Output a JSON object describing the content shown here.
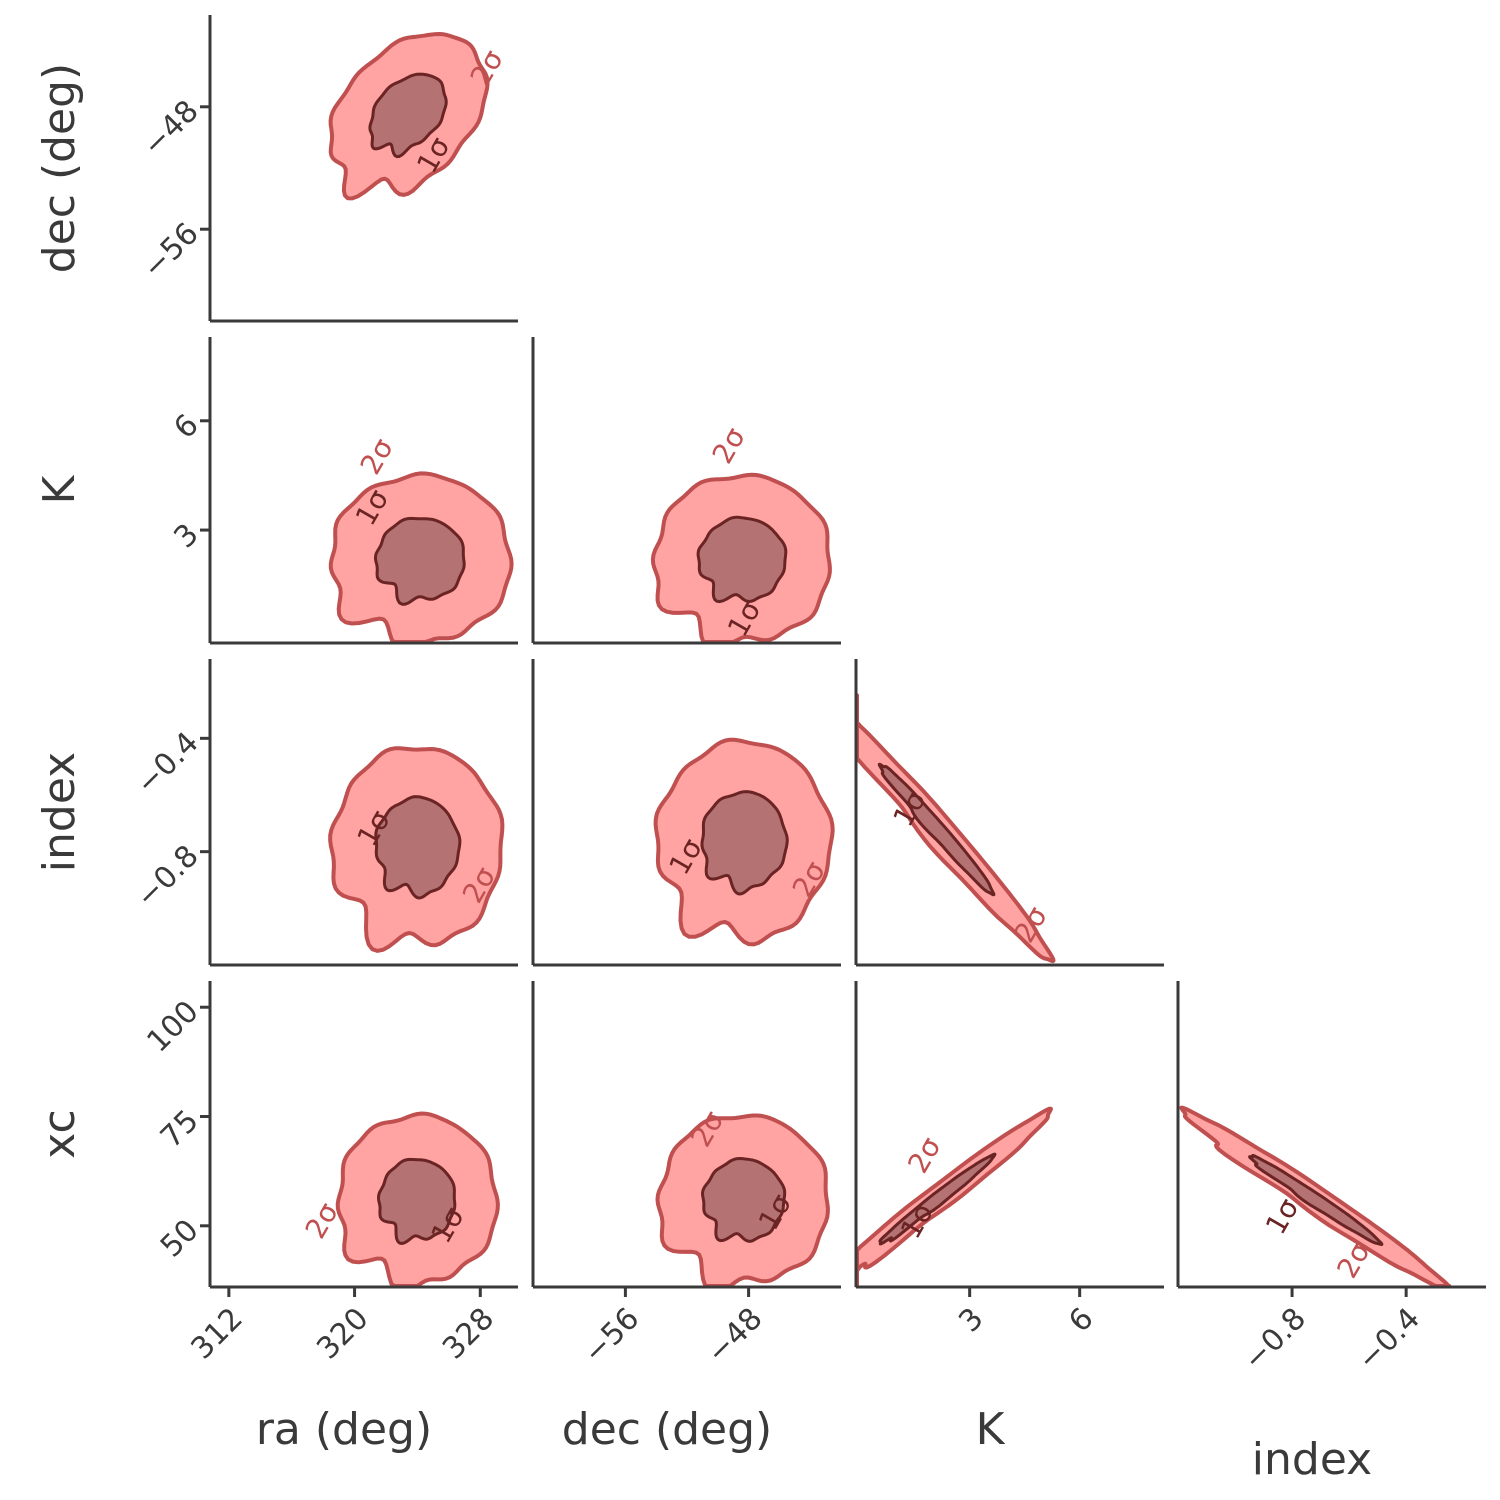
{
  "chart_data": {
    "type": "corner",
    "parameters": [
      {
        "key": "ra",
        "label": "ra (deg)",
        "range": [
          310.8,
          330.4
        ],
        "ticks": [
          312,
          320,
          328
        ],
        "tick_labels": [
          "312",
          "320",
          "328"
        ]
      },
      {
        "key": "dec",
        "label": "dec (deg)",
        "range": [
          -62.0,
          -42.0
        ],
        "ticks": [
          -56,
          -48
        ],
        "tick_labels": [
          "−56",
          "−48"
        ]
      },
      {
        "key": "K",
        "label": "K",
        "range": [
          -0.1,
          8.3
        ],
        "ticks": [
          3,
          6
        ],
        "tick_labels": [
          "3",
          "6"
        ]
      },
      {
        "key": "index",
        "label": "index",
        "range": [
          -1.2,
          -0.12
        ],
        "ticks": [
          -0.8,
          -0.4
        ],
        "tick_labels": [
          "−0.8",
          "−0.4"
        ]
      },
      {
        "key": "xc",
        "label": "xc",
        "range": [
          36,
          106
        ],
        "ticks": [
          50,
          75,
          100
        ],
        "tick_labels": [
          "50",
          "75",
          "100"
        ]
      }
    ],
    "contour_levels": [
      "1σ",
      "2σ"
    ],
    "colors": {
      "sigma1_fill": "#b07070",
      "sigma2_fill": "#ff9999",
      "sigma1_line": "#6b2424",
      "sigma2_line": "#c05050",
      "axis": "#3a3a3a"
    },
    "panels": [
      {
        "x": "ra",
        "y": "dec",
        "center": [
          323.4,
          -48.4
        ],
        "sigma": [
          2.3,
          2.4
        ],
        "rho": 0.35,
        "sigma1_scale": 1.05,
        "sigma2_scale": 2.15,
        "label_1sigma_at": [
          325.1,
          -51.2
        ],
        "label_2sigma_at": [
          328.5,
          -45.5
        ]
      },
      {
        "x": "ra",
        "y": "K",
        "center": [
          324.2,
          2.2
        ],
        "sigma": [
          2.6,
          1.05
        ],
        "rho": 0.0,
        "sigma1_scale": 1.08,
        "sigma2_scale": 2.2,
        "label_1sigma_at": [
          321.2,
          3.6
        ],
        "label_2sigma_at": [
          321.5,
          5.0
        ]
      },
      {
        "x": "dec",
        "y": "K",
        "center": [
          -48.4,
          2.2
        ],
        "sigma": [
          2.6,
          1.05
        ],
        "rho": 0.0,
        "sigma1_scale": 1.08,
        "sigma2_scale": 2.2,
        "label_1sigma_at": [
          -48.2,
          0.55
        ],
        "label_2sigma_at": [
          -49.2,
          5.3
        ]
      },
      {
        "x": "ra",
        "y": "index",
        "center": [
          324.0,
          -0.78
        ],
        "sigma": [
          2.4,
          0.155
        ],
        "rho": 0.0,
        "sigma1_scale": 1.1,
        "sigma2_scale": 2.25,
        "label_1sigma_at": [
          321.3,
          -0.72
        ],
        "label_2sigma_at": [
          328.0,
          -0.92
        ]
      },
      {
        "x": "dec",
        "y": "index",
        "center": [
          -48.3,
          -0.76
        ],
        "sigma": [
          2.5,
          0.155
        ],
        "rho": 0.0,
        "sigma1_scale": 1.1,
        "sigma2_scale": 2.25,
        "label_1sigma_at": [
          -52.0,
          -0.82
        ],
        "label_2sigma_at": [
          -44.0,
          -0.9
        ]
      },
      {
        "x": "K",
        "y": "index",
        "center": [
          2.1,
          -0.72
        ],
        "sigma": [
          1.35,
          0.2
        ],
        "rho": -0.985,
        "sigma1_scale": 1.15,
        "sigma2_scale": 2.3,
        "label_1sigma_at": [
          1.4,
          -0.65
        ],
        "label_2sigma_at": [
          4.7,
          -1.06
        ]
      },
      {
        "x": "ra",
        "y": "xc",
        "center": [
          324.0,
          56.0
        ],
        "sigma": [
          2.3,
          8.8
        ],
        "rho": 0.0,
        "sigma1_scale": 1.05,
        "sigma2_scale": 2.2,
        "label_1sigma_at": [
          326.0,
          50.0
        ],
        "label_2sigma_at": [
          318.0,
          51.0
        ]
      },
      {
        "x": "dec",
        "y": "xc",
        "center": [
          -48.3,
          56.0
        ],
        "sigma": [
          2.5,
          8.8
        ],
        "rho": 0.0,
        "sigma1_scale": 1.05,
        "sigma2_scale": 2.2,
        "label_1sigma_at": [
          -46.2,
          53.0
        ],
        "label_2sigma_at": [
          -50.6,
          72.0
        ]
      },
      {
        "x": "K",
        "y": "xc",
        "center": [
          2.1,
          56.0
        ],
        "sigma": [
          1.35,
          8.8
        ],
        "rho": 0.985,
        "sigma1_scale": 1.15,
        "sigma2_scale": 2.3,
        "label_1sigma_at": [
          1.6,
          51.0
        ],
        "label_2sigma_at": [
          1.8,
          66.0
        ]
      },
      {
        "x": "index",
        "y": "xc",
        "center": [
          -0.72,
          56.0
        ],
        "sigma": [
          0.2,
          8.8
        ],
        "rho": -0.985,
        "sigma1_scale": 1.15,
        "sigma2_scale": 2.3,
        "label_1sigma_at": [
          -0.83,
          52.0
        ],
        "label_2sigma_at": [
          -0.58,
          42.0
        ]
      }
    ]
  }
}
